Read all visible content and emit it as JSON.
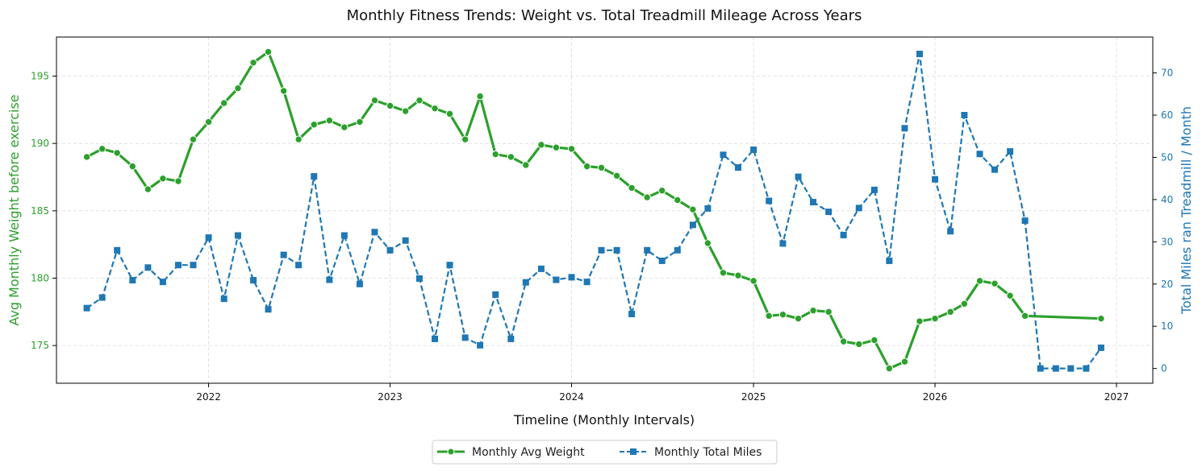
{
  "chart_data": {
    "type": "line",
    "title": "Monthly Fitness Trends: Weight vs. Total Treadmill Mileage Across Years",
    "xlabel": "Timeline (Monthly Intervals)",
    "ylabel_left": "Avg Monthly Weight before exercise",
    "ylabel_right": "Total Miles ran Treadmill / Month",
    "x_ticks": [
      "2022",
      "2023",
      "2024",
      "2025",
      "2026",
      "2027"
    ],
    "x_range": [
      "2021-03-01",
      "2027-03-15"
    ],
    "y_left_range": [
      172.2,
      197.9
    ],
    "y_left_ticks": [
      175,
      180,
      185,
      190,
      195
    ],
    "y_right_range": [
      -3.5,
      78.5
    ],
    "y_right_ticks": [
      0,
      10,
      20,
      30,
      40,
      50,
      60,
      70
    ],
    "grid": true,
    "legend_position": "bottom-center",
    "colors": {
      "weight": "#2ca02c",
      "miles": "#1f77b4",
      "left_axis": "#2ca02c",
      "right_axis": "#1f77b4"
    },
    "series": [
      {
        "name": "Monthly Avg Weight",
        "axis": "left",
        "style": "solid-circle",
        "x": [
          "2021-05",
          "2021-06",
          "2021-07",
          "2021-08",
          "2021-09",
          "2021-10",
          "2021-11",
          "2021-12",
          "2022-01",
          "2022-02",
          "2022-03",
          "2022-04",
          "2022-05",
          "2022-06",
          "2022-07",
          "2022-08",
          "2022-09",
          "2022-10",
          "2022-11",
          "2022-12",
          "2023-01",
          "2023-02",
          "2023-03",
          "2023-04",
          "2023-05",
          "2023-06",
          "2023-07",
          "2023-08",
          "2023-09",
          "2023-10",
          "2023-11",
          "2023-12",
          "2024-01",
          "2024-02",
          "2024-03",
          "2024-04",
          "2024-05",
          "2024-06",
          "2024-07",
          "2024-08",
          "2024-09",
          "2024-10",
          "2024-11",
          "2024-12",
          "2025-01",
          "2025-02",
          "2025-03",
          "2025-04",
          "2025-05",
          "2025-06",
          "2025-07",
          "2025-08",
          "2025-09",
          "2025-10",
          "2025-11",
          "2025-12",
          "2026-01",
          "2026-02",
          "2026-03",
          "2026-04",
          "2026-05",
          "2026-06",
          "2026-07",
          "2026-12"
        ],
        "values": [
          189.0,
          189.6,
          189.3,
          188.3,
          186.6,
          187.4,
          187.2,
          190.3,
          191.6,
          193.0,
          194.1,
          196.0,
          196.8,
          193.9,
          190.3,
          191.4,
          191.7,
          191.2,
          191.6,
          193.2,
          192.8,
          192.4,
          193.2,
          192.6,
          192.2,
          190.3,
          193.5,
          189.2,
          189.0,
          188.4,
          189.9,
          189.7,
          189.6,
          188.3,
          188.2,
          187.6,
          186.7,
          186.0,
          186.5,
          185.8,
          185.1,
          182.6,
          180.4,
          180.2,
          179.8,
          177.2,
          177.3,
          177.0,
          177.6,
          177.5,
          175.3,
          175.1,
          175.4,
          173.3,
          173.8,
          176.8,
          177.0,
          177.5,
          178.1,
          179.8,
          179.6,
          178.7,
          177.2,
          177.0
        ]
      },
      {
        "name": "Monthly Total Miles",
        "axis": "right",
        "style": "dashed-square",
        "x": [
          "2021-05",
          "2021-06",
          "2021-07",
          "2021-08",
          "2021-09",
          "2021-10",
          "2021-11",
          "2021-12",
          "2022-01",
          "2022-02",
          "2022-03",
          "2022-04",
          "2022-05",
          "2022-06",
          "2022-07",
          "2022-08",
          "2022-09",
          "2022-10",
          "2022-11",
          "2022-12",
          "2023-01",
          "2023-02",
          "2023-03",
          "2023-04",
          "2023-05",
          "2023-06",
          "2023-07",
          "2023-08",
          "2023-09",
          "2023-10",
          "2023-11",
          "2023-12",
          "2024-01",
          "2024-02",
          "2024-03",
          "2024-04",
          "2024-05",
          "2024-06",
          "2024-07",
          "2024-08",
          "2024-09",
          "2024-10",
          "2024-11",
          "2024-12",
          "2025-01",
          "2025-02",
          "2025-03",
          "2025-04",
          "2025-05",
          "2025-06",
          "2025-07",
          "2025-08",
          "2025-09",
          "2025-10",
          "2025-11",
          "2025-12",
          "2026-01",
          "2026-02",
          "2026-03",
          "2026-04",
          "2026-05",
          "2026-06",
          "2026-07",
          "2026-08",
          "2026-09",
          "2026-10",
          "2026-11",
          "2026-12"
        ],
        "values": [
          14.3,
          16.8,
          28.0,
          20.9,
          23.9,
          20.5,
          24.5,
          24.5,
          31.0,
          16.5,
          31.5,
          20.9,
          14.0,
          26.9,
          24.5,
          45.5,
          21.0,
          31.5,
          20.0,
          32.3,
          28.0,
          30.3,
          21.3,
          7.0,
          24.5,
          7.3,
          5.5,
          17.5,
          7.0,
          20.4,
          23.6,
          21.0,
          21.6,
          20.5,
          28.0,
          28.0,
          12.9,
          28.0,
          25.5,
          28.0,
          34.0,
          37.9,
          50.6,
          47.6,
          51.8,
          39.7,
          29.6,
          45.4,
          39.4,
          37.1,
          31.6,
          38.0,
          42.3,
          25.5,
          56.9,
          74.5,
          44.8,
          32.5,
          60.0,
          50.8,
          47.1,
          51.4,
          35.0,
          0.0,
          0.0,
          0.0,
          0.0,
          4.9
        ]
      }
    ]
  }
}
